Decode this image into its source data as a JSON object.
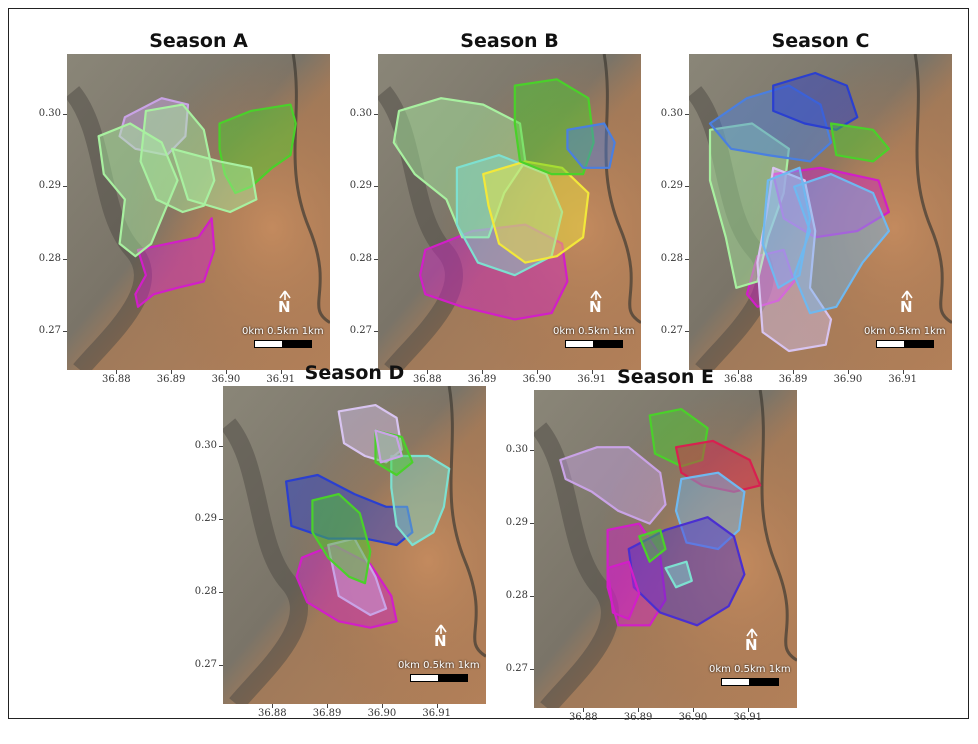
{
  "panels": [
    {
      "id": "A",
      "title": "Season A",
      "y_ticks": [
        "0.30",
        "0.29",
        "0.28",
        "0.27"
      ],
      "x_ticks": [
        "36.88",
        "36.89",
        "36.90",
        "36.91"
      ],
      "show_y": true
    },
    {
      "id": "B",
      "title": "Season B",
      "y_ticks": [
        "0.30",
        "0.29",
        "0.28",
        "0.27"
      ],
      "x_ticks": [
        "36.88",
        "36.89",
        "36.90",
        "36.91"
      ],
      "show_y": true
    },
    {
      "id": "C",
      "title": "Season C",
      "y_ticks": [
        "0.30",
        "0.29",
        "0.28",
        "0.27"
      ],
      "x_ticks": [
        "36.88",
        "36.89",
        "36.90",
        "36.91"
      ],
      "show_y": true
    },
    {
      "id": "D",
      "title": "Season D",
      "y_ticks": [
        "0.30",
        "0.29",
        "0.28",
        "0.27"
      ],
      "x_ticks": [
        "36.88",
        "36.89",
        "36.90",
        "36.91"
      ],
      "show_y": true
    },
    {
      "id": "E",
      "title": "Season E",
      "y_ticks": [
        "0.30",
        "0.29",
        "0.28",
        "0.27"
      ],
      "x_ticks": [
        "36.88",
        "36.89",
        "36.90",
        "36.91"
      ],
      "show_y": true
    }
  ],
  "scale_bar": {
    "labels": "0km 0.5km 1km"
  },
  "north_arrow": {
    "label": "N"
  },
  "map_extent": {
    "lon": [
      36.871,
      36.919
    ],
    "lat": [
      0.2647,
      0.3082
    ]
  },
  "colors": {
    "magenta": "#d21ec8",
    "purple_light": "#c9a3e6",
    "mint": "#a8f0a0",
    "green": "#4ad12a",
    "yellow": "#f2e83a",
    "cyan": "#7de0d0",
    "blue": "#4a7fe0",
    "navy": "#2a3fd0",
    "lavender": "#d8c4f0",
    "sky": "#6fb8f0",
    "crimson": "#d82050",
    "indigo": "#4a2fd0"
  }
}
